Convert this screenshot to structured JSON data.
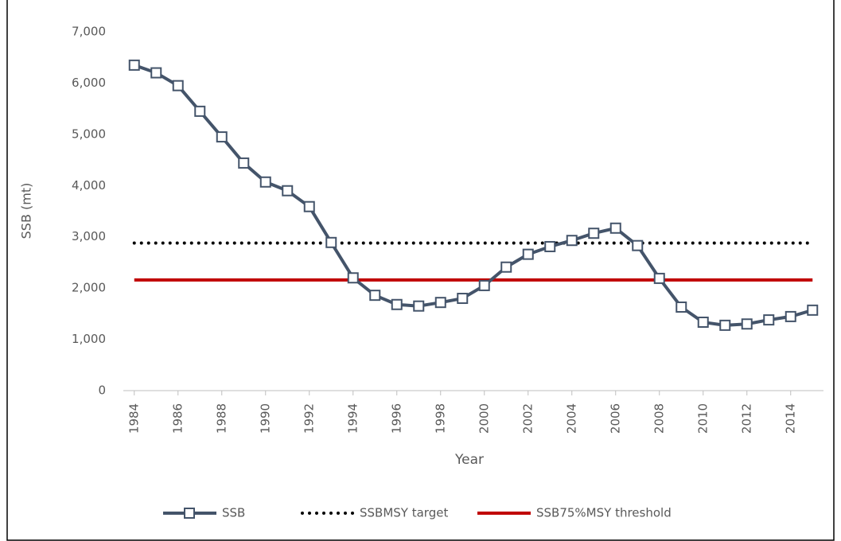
{
  "chart_data": {
    "type": "line",
    "x": [
      1984,
      1985,
      1986,
      1987,
      1988,
      1989,
      1990,
      1991,
      1992,
      1993,
      1994,
      1995,
      1996,
      1997,
      1998,
      1999,
      2000,
      2001,
      2002,
      2003,
      2004,
      2005,
      2006,
      2007,
      2008,
      2009,
      2010,
      2011,
      2012,
      2013,
      2014,
      2015
    ],
    "series": [
      {
        "name": "SSB",
        "color": "#44546a",
        "marker": "square",
        "style": "solid",
        "values": [
          6350,
          6200,
          5950,
          5450,
          4950,
          4440,
          4070,
          3900,
          3590,
          2890,
          2200,
          1860,
          1680,
          1650,
          1720,
          1800,
          2050,
          2410,
          2660,
          2810,
          2930,
          3070,
          3170,
          2830,
          2190,
          1630,
          1335,
          1275,
          1300,
          1380,
          1445,
          1570
        ]
      },
      {
        "name": "SSBMSY target",
        "color": "#000000",
        "style": "dotted",
        "values": [
          2880,
          2880,
          2880,
          2880,
          2880,
          2880,
          2880,
          2880,
          2880,
          2880,
          2880,
          2880,
          2880,
          2880,
          2880,
          2880,
          2880,
          2880,
          2880,
          2880,
          2880,
          2880,
          2880,
          2880,
          2880,
          2880,
          2880,
          2880,
          2880,
          2880,
          2880,
          2880
        ]
      },
      {
        "name": "SSB75%MSY threshold",
        "color": "#c00000",
        "style": "solid",
        "values": [
          2160,
          2160,
          2160,
          2160,
          2160,
          2160,
          2160,
          2160,
          2160,
          2160,
          2160,
          2160,
          2160,
          2160,
          2160,
          2160,
          2160,
          2160,
          2160,
          2160,
          2160,
          2160,
          2160,
          2160,
          2160,
          2160,
          2160,
          2160,
          2160,
          2160,
          2160,
          2160
        ]
      }
    ],
    "xlabel": "Year",
    "ylabel": "SSB (mt)",
    "xlim": [
      1983.5,
      2015.5
    ],
    "xticks": [
      1984,
      1986,
      1988,
      1990,
      1992,
      1994,
      1996,
      1998,
      2000,
      2002,
      2004,
      2006,
      2008,
      2010,
      2012,
      2014
    ],
    "ylim": [
      0,
      7000
    ],
    "yticks": [
      0,
      {
        "value": 1000,
        "label": "1,000"
      },
      {
        "value": 2000,
        "label": "2,000"
      },
      {
        "value": 3000,
        "label": "3,000"
      },
      {
        "value": 4000,
        "label": "4,000"
      },
      {
        "value": 5000,
        "label": "5,000"
      },
      {
        "value": 6000,
        "label": "6,000"
      },
      {
        "value": 7000,
        "label": "7,000"
      }
    ],
    "grid": false,
    "legend": "bottom"
  }
}
